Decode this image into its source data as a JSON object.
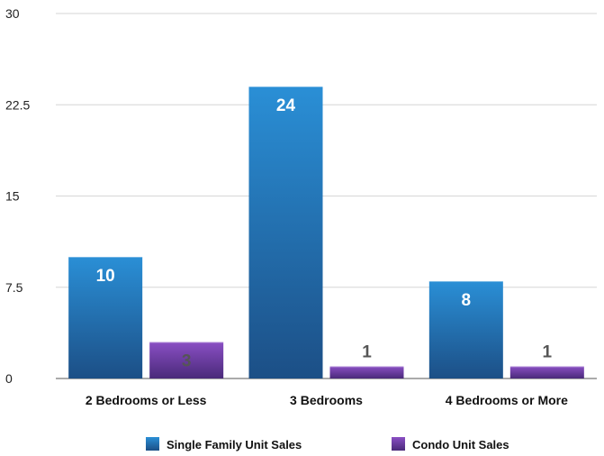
{
  "chart_data": {
    "type": "bar",
    "title": "",
    "xlabel": "",
    "ylabel": "",
    "ylim": [
      0,
      30
    ],
    "y_ticks": [
      "0",
      "7.5",
      "15",
      "22.5",
      "30"
    ],
    "grid": true,
    "legend_position": "bottom",
    "categories": [
      "2 Bedrooms or Less",
      "3 Bedrooms",
      "4 Bedrooms or More"
    ],
    "series": [
      {
        "name": "Single Family Unit Sales",
        "values": [
          10,
          24,
          8
        ],
        "color_top": "#2a8fd6",
        "color_bottom": "#1c4f86",
        "label_color": "#ffffff"
      },
      {
        "name": "Condo Unit Sales",
        "values": [
          3,
          1,
          1
        ],
        "color_top": "#8a4fc4",
        "color_bottom": "#4a2a7a",
        "label_color": "#555555"
      }
    ]
  }
}
